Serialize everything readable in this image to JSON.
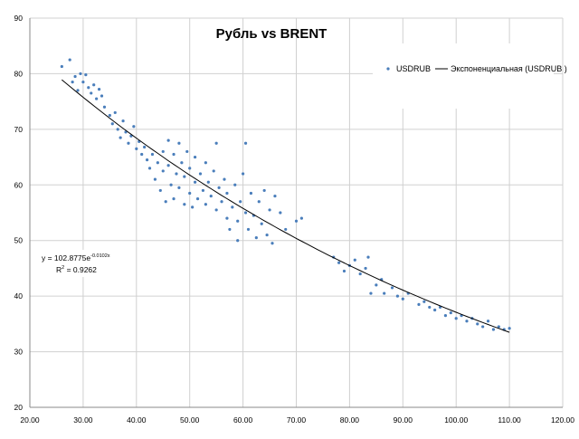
{
  "chart_data": {
    "type": "scatter",
    "title": "Рубль  vs BRENT",
    "xlabel": "",
    "ylabel": "",
    "xlim": [
      20,
      120
    ],
    "ylim": [
      20,
      90
    ],
    "xticks": [
      "20.00",
      "30.00",
      "40.00",
      "50.00",
      "60.00",
      "70.00",
      "80.00",
      "90.00",
      "100.00",
      "110.00",
      "120.00"
    ],
    "yticks": [
      "20",
      "30",
      "40",
      "50",
      "60",
      "70",
      "80",
      "90"
    ],
    "grid": true,
    "legend_position": "top-right",
    "series": [
      {
        "name": "USDRUB",
        "color": "#4a7ebb",
        "points": [
          [
            26,
            81.3
          ],
          [
            27.5,
            82.5
          ],
          [
            28,
            78.5
          ],
          [
            28.5,
            79.5
          ],
          [
            29,
            77
          ],
          [
            29.5,
            80
          ],
          [
            30,
            78.5
          ],
          [
            30.5,
            79.8
          ],
          [
            31,
            77.5
          ],
          [
            31.5,
            76.5
          ],
          [
            32,
            78
          ],
          [
            32.5,
            75.5
          ],
          [
            33,
            77.2
          ],
          [
            33.5,
            76
          ],
          [
            34,
            74
          ],
          [
            35,
            72.5
          ],
          [
            35.5,
            71
          ],
          [
            36,
            73
          ],
          [
            36.5,
            70
          ],
          [
            37,
            68.5
          ],
          [
            37.5,
            71.5
          ],
          [
            38,
            69.5
          ],
          [
            38.5,
            67.5
          ],
          [
            39,
            68.8
          ],
          [
            39.5,
            70.5
          ],
          [
            40,
            66.5
          ],
          [
            40.5,
            67.8
          ],
          [
            41,
            65.5
          ],
          [
            41.5,
            66.8
          ],
          [
            42,
            64.5
          ],
          [
            42.5,
            63
          ],
          [
            43,
            65.5
          ],
          [
            43.5,
            61
          ],
          [
            44,
            64
          ],
          [
            44.5,
            59
          ],
          [
            45,
            66
          ],
          [
            45,
            62.5
          ],
          [
            45.5,
            57
          ],
          [
            46,
            68
          ],
          [
            46,
            63.5
          ],
          [
            46.5,
            60
          ],
          [
            47,
            65.5
          ],
          [
            47,
            57.5
          ],
          [
            47.5,
            62
          ],
          [
            48,
            67.5
          ],
          [
            48,
            59.5
          ],
          [
            48.5,
            64
          ],
          [
            49,
            56.5
          ],
          [
            49,
            61.5
          ],
          [
            49.5,
            66
          ],
          [
            50,
            58.5
          ],
          [
            50,
            63
          ],
          [
            50.5,
            56
          ],
          [
            51,
            60.5
          ],
          [
            51,
            65
          ],
          [
            51.5,
            57.5
          ],
          [
            52,
            62
          ],
          [
            52.5,
            59
          ],
          [
            53,
            56.5
          ],
          [
            53,
            64
          ],
          [
            53.5,
            60.5
          ],
          [
            54,
            58
          ],
          [
            54.5,
            62.5
          ],
          [
            55,
            55.5
          ],
          [
            55,
            67.5
          ],
          [
            55.5,
            59.5
          ],
          [
            56,
            57
          ],
          [
            56.5,
            61
          ],
          [
            57,
            54
          ],
          [
            57,
            58.5
          ],
          [
            57.5,
            52
          ],
          [
            58,
            56
          ],
          [
            58.5,
            60
          ],
          [
            59,
            53.5
          ],
          [
            59,
            50
          ],
          [
            59.5,
            57
          ],
          [
            60,
            62
          ],
          [
            60.5,
            55
          ],
          [
            60.5,
            67.5
          ],
          [
            61,
            52
          ],
          [
            61.5,
            58.5
          ],
          [
            62,
            54.5
          ],
          [
            62.5,
            50.5
          ],
          [
            63,
            57
          ],
          [
            63.5,
            53
          ],
          [
            64,
            59
          ],
          [
            64.5,
            51
          ],
          [
            65,
            55.5
          ],
          [
            65.5,
            49.5
          ],
          [
            66,
            58
          ],
          [
            67,
            55
          ],
          [
            68,
            52
          ],
          [
            70,
            53.5
          ],
          [
            71,
            54
          ],
          [
            77,
            47
          ],
          [
            78,
            46
          ],
          [
            79,
            44.5
          ],
          [
            80,
            45.5
          ],
          [
            81,
            46.5
          ],
          [
            82,
            44
          ],
          [
            83,
            45
          ],
          [
            83.5,
            47
          ],
          [
            84,
            40.5
          ],
          [
            85,
            42
          ],
          [
            86,
            43
          ],
          [
            86.5,
            40.5
          ],
          [
            88,
            41.5
          ],
          [
            89,
            40
          ],
          [
            90,
            39.5
          ],
          [
            91,
            40.5
          ],
          [
            93,
            38.5
          ],
          [
            94,
            39
          ],
          [
            95,
            38
          ],
          [
            96,
            37.5
          ],
          [
            97,
            38
          ],
          [
            98,
            36.5
          ],
          [
            99,
            37
          ],
          [
            100,
            36
          ],
          [
            101,
            36.5
          ],
          [
            102,
            35.5
          ],
          [
            103,
            36
          ],
          [
            104,
            35
          ],
          [
            105,
            34.5
          ],
          [
            106,
            35.5
          ],
          [
            107,
            34
          ],
          [
            108,
            34.5
          ],
          [
            109,
            34
          ],
          [
            110,
            34.2
          ]
        ]
      }
    ],
    "trendline": {
      "name": "Экспоненциальная (USDRUB )",
      "a": 102.8775,
      "b": -0.0102,
      "x_range": [
        26,
        110
      ],
      "color": "#000000"
    },
    "equation": {
      "main": "y = 102.8775e",
      "exp": "-0.0102x",
      "r2_label": "R",
      "r2_sup": "2",
      "r2_value": " = 0.9262"
    }
  }
}
